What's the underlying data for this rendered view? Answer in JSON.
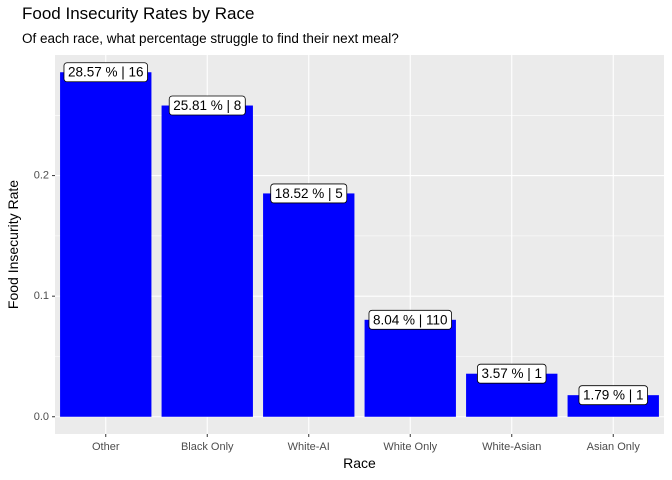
{
  "chart_data": {
    "type": "bar",
    "title": "Food Insecurity Rates by Race",
    "subtitle": "Of each race, what percentage struggle to find their next meal?",
    "xlabel": "Race",
    "ylabel": "Food Insecurity Rate",
    "categories": [
      "Other",
      "Black Only",
      "White-AI",
      "White Only",
      "White-Asian",
      "Asian Only"
    ],
    "values": [
      0.2857,
      0.2581,
      0.1852,
      0.0804,
      0.0357,
      0.0179
    ],
    "labels": [
      "28.57 % | 16",
      "25.81 % | 8",
      "18.52 % | 5",
      "8.04 % | 110",
      "3.57 % | 1",
      "1.79 % | 1"
    ],
    "yticks": [
      0.0,
      0.1,
      0.2
    ],
    "ytick_labels": [
      "0.0",
      "0.1",
      "0.2"
    ],
    "ylim": [
      -0.0143,
      0.3
    ],
    "grid": true,
    "bar_color": "#0000ff",
    "panel_color": "#ebebeb",
    "grid_color": "#ffffff"
  }
}
